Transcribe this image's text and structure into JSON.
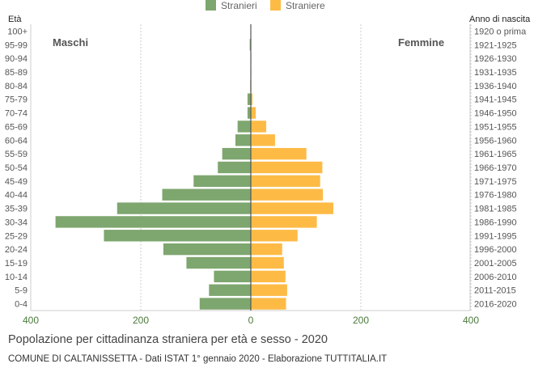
{
  "chart_data": {
    "type": "bar",
    "orientation": "horizontal-pyramid",
    "title": "Popolazione per cittadinanza straniera per età e sesso - 2020",
    "subtitle": "COMUNE DI CALTANISSETTA - Dati ISTAT 1° gennaio 2020 - Elaborazione TUTTITALIA.IT",
    "left_axis_title": "Età",
    "right_axis_title": "Anno di nascita",
    "left_side_label": "Maschi",
    "right_side_label": "Femmine",
    "xlim": [
      -400,
      400
    ],
    "x_ticks": [
      "400",
      "200",
      "0",
      "200",
      "400"
    ],
    "grid": true,
    "legend_position": "top",
    "categories": [
      "100+",
      "95-99",
      "90-94",
      "85-89",
      "80-84",
      "75-79",
      "70-74",
      "65-69",
      "60-64",
      "55-59",
      "50-54",
      "45-49",
      "40-44",
      "35-39",
      "30-34",
      "25-29",
      "20-24",
      "15-19",
      "10-14",
      "5-9",
      "0-4"
    ],
    "birth_years": [
      "1920 o prima",
      "1921-1925",
      "1926-1930",
      "1931-1935",
      "1936-1940",
      "1941-1945",
      "1946-1950",
      "1951-1955",
      "1956-1960",
      "1961-1965",
      "1966-1970",
      "1971-1975",
      "1976-1980",
      "1981-1985",
      "1986-1990",
      "1991-1995",
      "1996-2000",
      "2001-2005",
      "2006-2010",
      "2011-2015",
      "2016-2020"
    ],
    "series": [
      {
        "name": "Stranieri",
        "color": "#7ea66f",
        "values": [
          0,
          2,
          0,
          0,
          1,
          6,
          6,
          24,
          28,
          52,
          60,
          104,
          161,
          243,
          355,
          267,
          159,
          117,
          67,
          76,
          93
        ]
      },
      {
        "name": "Straniere",
        "color": "#fdbb46",
        "values": [
          0,
          0,
          1,
          1,
          1,
          3,
          9,
          28,
          44,
          101,
          130,
          126,
          131,
          150,
          120,
          85,
          57,
          60,
          63,
          66,
          64
        ]
      }
    ]
  }
}
